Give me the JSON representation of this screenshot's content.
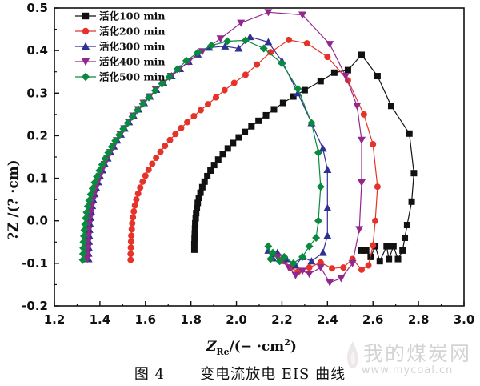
{
  "chart_data": {
    "type": "scatter",
    "xlabel": "Z_Re/(− ·cm²)",
    "xlabel_main": "Z",
    "xlabel_sub": "Re",
    "xlabel_tail": "/(− ·cm",
    "xlabel_sup": "2",
    "xlabel_close": ")",
    "ylabel": "?Z  /(? ·cm)",
    "xlim": [
      1.2,
      3.0
    ],
    "ylim": [
      -0.2,
      0.5
    ],
    "xticks": [
      "1.2",
      "1.4",
      "1.6",
      "1.8",
      "2.0",
      "2.2",
      "2.4",
      "2.6",
      "2.8",
      "3.0"
    ],
    "yticks": [
      "-0.2",
      "-0.1",
      "0.0",
      "0.1",
      "0.2",
      "0.3",
      "0.4",
      "0.5"
    ],
    "legend_position": "top-left",
    "series": [
      {
        "name": "活化100 min",
        "color": "#111111",
        "marker": "square",
        "points": [
          [
            1.815,
            -0.068
          ],
          [
            1.815,
            -0.055
          ],
          [
            1.816,
            -0.042
          ],
          [
            1.817,
            -0.03
          ],
          [
            1.818,
            -0.018
          ],
          [
            1.819,
            -0.006
          ],
          [
            1.821,
            0.006
          ],
          [
            1.823,
            0.018
          ],
          [
            1.826,
            0.03
          ],
          [
            1.83,
            0.042
          ],
          [
            1.835,
            0.054
          ],
          [
            1.842,
            0.066
          ],
          [
            1.85,
            0.079
          ],
          [
            1.86,
            0.092
          ],
          [
            1.872,
            0.105
          ],
          [
            1.886,
            0.118
          ],
          [
            1.902,
            0.131
          ],
          [
            1.92,
            0.144
          ],
          [
            1.94,
            0.157
          ],
          [
            1.962,
            0.17
          ],
          [
            1.985,
            0.183
          ],
          [
            2.01,
            0.196
          ],
          [
            2.037,
            0.209
          ],
          [
            2.066,
            0.222
          ],
          [
            2.097,
            0.235
          ],
          [
            2.13,
            0.248
          ],
          [
            2.165,
            0.262
          ],
          [
            2.205,
            0.277
          ],
          [
            2.25,
            0.292
          ],
          [
            2.3,
            0.307
          ],
          [
            2.37,
            0.328
          ],
          [
            2.43,
            0.348
          ],
          [
            2.49,
            0.354
          ],
          [
            2.55,
            0.39
          ],
          [
            2.62,
            0.34
          ],
          [
            2.68,
            0.27
          ],
          [
            2.76,
            0.205
          ],
          [
            2.78,
            0.112
          ],
          [
            2.77,
            0.045
          ],
          [
            2.75,
            -0.01
          ],
          [
            2.74,
            -0.04
          ],
          [
            2.73,
            -0.07
          ],
          [
            2.71,
            -0.09
          ],
          [
            2.69,
            -0.06
          ],
          [
            2.67,
            -0.09
          ],
          [
            2.66,
            -0.06
          ],
          [
            2.63,
            -0.095
          ],
          [
            2.61,
            -0.06
          ],
          [
            2.59,
            -0.085
          ],
          [
            2.57,
            -0.07
          ],
          [
            2.55,
            -0.07
          ]
        ]
      },
      {
        "name": "活化200 min",
        "color": "#e5332a",
        "marker": "circle",
        "points": [
          [
            1.535,
            -0.092
          ],
          [
            1.535,
            -0.078
          ],
          [
            1.536,
            -0.063
          ],
          [
            1.537,
            -0.049
          ],
          [
            1.538,
            -0.035
          ],
          [
            1.54,
            -0.02
          ],
          [
            1.542,
            -0.006
          ],
          [
            1.545,
            0.008
          ],
          [
            1.549,
            0.022
          ],
          [
            1.554,
            0.036
          ],
          [
            1.56,
            0.05
          ],
          [
            1.568,
            0.064
          ],
          [
            1.577,
            0.078
          ],
          [
            1.588,
            0.092
          ],
          [
            1.6,
            0.106
          ],
          [
            1.614,
            0.12
          ],
          [
            1.63,
            0.134
          ],
          [
            1.647,
            0.148
          ],
          [
            1.666,
            0.162
          ],
          [
            1.686,
            0.176
          ],
          [
            1.708,
            0.19
          ],
          [
            1.732,
            0.204
          ],
          [
            1.757,
            0.218
          ],
          [
            1.784,
            0.232
          ],
          [
            1.813,
            0.246
          ],
          [
            1.843,
            0.26
          ],
          [
            1.875,
            0.274
          ],
          [
            1.91,
            0.29
          ],
          [
            1.948,
            0.307
          ],
          [
            1.99,
            0.324
          ],
          [
            2.04,
            0.343
          ],
          [
            2.09,
            0.367
          ],
          [
            2.15,
            0.396
          ],
          [
            2.23,
            0.425
          ],
          [
            2.31,
            0.417
          ],
          [
            2.4,
            0.385
          ],
          [
            2.49,
            0.33
          ],
          [
            2.56,
            0.25
          ],
          [
            2.6,
            0.18
          ],
          [
            2.62,
            0.08
          ],
          [
            2.61,
            0.0
          ],
          [
            2.6,
            -0.058
          ],
          [
            2.58,
            -0.105
          ],
          [
            2.55,
            -0.115
          ],
          [
            2.51,
            -0.09
          ],
          [
            2.47,
            -0.11
          ],
          [
            2.42,
            -0.112
          ],
          [
            2.37,
            -0.098
          ],
          [
            2.32,
            -0.11
          ],
          [
            2.27,
            -0.12
          ],
          [
            2.24,
            -0.11
          ],
          [
            2.21,
            -0.095
          ],
          [
            2.18,
            -0.08
          ]
        ]
      },
      {
        "name": "活化300 min",
        "color": "#2e3192",
        "marker": "triangle",
        "points": [
          [
            1.35,
            -0.09
          ],
          [
            1.35,
            -0.077
          ],
          [
            1.351,
            -0.063
          ],
          [
            1.352,
            -0.049
          ],
          [
            1.353,
            -0.035
          ],
          [
            1.354,
            -0.021
          ],
          [
            1.356,
            -0.007
          ],
          [
            1.359,
            0.007
          ],
          [
            1.362,
            0.021
          ],
          [
            1.366,
            0.035
          ],
          [
            1.371,
            0.049
          ],
          [
            1.377,
            0.063
          ],
          [
            1.384,
            0.077
          ],
          [
            1.392,
            0.091
          ],
          [
            1.401,
            0.105
          ],
          [
            1.411,
            0.119
          ],
          [
            1.422,
            0.133
          ],
          [
            1.434,
            0.147
          ],
          [
            1.447,
            0.161
          ],
          [
            1.461,
            0.175
          ],
          [
            1.476,
            0.189
          ],
          [
            1.492,
            0.203
          ],
          [
            1.509,
            0.217
          ],
          [
            1.528,
            0.232
          ],
          [
            1.548,
            0.247
          ],
          [
            1.57,
            0.262
          ],
          [
            1.594,
            0.277
          ],
          [
            1.62,
            0.292
          ],
          [
            1.648,
            0.308
          ],
          [
            1.68,
            0.324
          ],
          [
            1.715,
            0.34
          ],
          [
            1.752,
            0.357
          ],
          [
            1.79,
            0.374
          ],
          [
            1.83,
            0.391
          ],
          [
            1.88,
            0.407
          ],
          [
            1.95,
            0.41
          ],
          [
            2.01,
            0.405
          ],
          [
            2.06,
            0.432
          ],
          [
            2.14,
            0.42
          ],
          [
            2.2,
            0.375
          ],
          [
            2.27,
            0.3
          ],
          [
            2.33,
            0.23
          ],
          [
            2.38,
            0.17
          ],
          [
            2.4,
            0.12
          ],
          [
            2.4,
            0.03
          ],
          [
            2.4,
            -0.035
          ],
          [
            2.38,
            -0.075
          ],
          [
            2.33,
            -0.095
          ],
          [
            2.29,
            -0.085
          ],
          [
            2.26,
            -0.105
          ],
          [
            2.22,
            -0.09
          ],
          [
            2.18,
            -0.075
          ],
          [
            2.16,
            -0.088
          ],
          [
            2.14,
            -0.07
          ]
        ]
      },
      {
        "name": "活化400 min",
        "color": "#92278f",
        "marker": "triangle-down",
        "points": [
          [
            1.345,
            -0.09
          ],
          [
            1.346,
            -0.077
          ],
          [
            1.347,
            -0.063
          ],
          [
            1.348,
            -0.049
          ],
          [
            1.349,
            -0.035
          ],
          [
            1.351,
            -0.021
          ],
          [
            1.353,
            -0.007
          ],
          [
            1.356,
            0.007
          ],
          [
            1.36,
            0.021
          ],
          [
            1.364,
            0.035
          ],
          [
            1.369,
            0.049
          ],
          [
            1.375,
            0.063
          ],
          [
            1.382,
            0.077
          ],
          [
            1.39,
            0.091
          ],
          [
            1.399,
            0.105
          ],
          [
            1.409,
            0.119
          ],
          [
            1.42,
            0.133
          ],
          [
            1.432,
            0.147
          ],
          [
            1.445,
            0.161
          ],
          [
            1.459,
            0.175
          ],
          [
            1.474,
            0.189
          ],
          [
            1.49,
            0.203
          ],
          [
            1.507,
            0.217
          ],
          [
            1.526,
            0.232
          ],
          [
            1.546,
            0.247
          ],
          [
            1.568,
            0.262
          ],
          [
            1.592,
            0.277
          ],
          [
            1.618,
            0.292
          ],
          [
            1.646,
            0.308
          ],
          [
            1.678,
            0.324
          ],
          [
            1.712,
            0.34
          ],
          [
            1.75,
            0.357
          ],
          [
            1.79,
            0.374
          ],
          [
            1.85,
            0.398
          ],
          [
            1.93,
            0.428
          ],
          [
            2.02,
            0.465
          ],
          [
            2.14,
            0.49
          ],
          [
            2.29,
            0.484
          ],
          [
            2.41,
            0.415
          ],
          [
            2.48,
            0.34
          ],
          [
            2.53,
            0.27
          ],
          [
            2.55,
            0.19
          ],
          [
            2.55,
            0.09
          ],
          [
            2.54,
            -0.02
          ],
          [
            2.51,
            -0.1
          ],
          [
            2.46,
            -0.135
          ],
          [
            2.41,
            -0.145
          ],
          [
            2.37,
            -0.11
          ],
          [
            2.32,
            -0.125
          ],
          [
            2.29,
            -0.118
          ],
          [
            2.26,
            -0.128
          ],
          [
            2.23,
            -0.11
          ],
          [
            2.2,
            -0.095
          ],
          [
            2.18,
            -0.085
          ]
        ]
      },
      {
        "name": "活化500 min",
        "color": "#0a8a3e",
        "marker": "diamond",
        "points": [
          [
            1.325,
            -0.092
          ],
          [
            1.326,
            -0.078
          ],
          [
            1.327,
            -0.064
          ],
          [
            1.328,
            -0.05
          ],
          [
            1.33,
            -0.036
          ],
          [
            1.332,
            -0.022
          ],
          [
            1.335,
            -0.008
          ],
          [
            1.338,
            0.006
          ],
          [
            1.342,
            0.02
          ],
          [
            1.347,
            0.034
          ],
          [
            1.353,
            0.048
          ],
          [
            1.36,
            0.062
          ],
          [
            1.368,
            0.076
          ],
          [
            1.377,
            0.09
          ],
          [
            1.387,
            0.104
          ],
          [
            1.398,
            0.118
          ],
          [
            1.41,
            0.132
          ],
          [
            1.423,
            0.146
          ],
          [
            1.437,
            0.16
          ],
          [
            1.452,
            0.174
          ],
          [
            1.468,
            0.188
          ],
          [
            1.485,
            0.202
          ],
          [
            1.503,
            0.216
          ],
          [
            1.522,
            0.23
          ],
          [
            1.543,
            0.245
          ],
          [
            1.565,
            0.26
          ],
          [
            1.589,
            0.275
          ],
          [
            1.615,
            0.29
          ],
          [
            1.643,
            0.306
          ],
          [
            1.673,
            0.322
          ],
          [
            1.705,
            0.338
          ],
          [
            1.74,
            0.356
          ],
          [
            1.78,
            0.376
          ],
          [
            1.83,
            0.395
          ],
          [
            1.89,
            0.412
          ],
          [
            1.96,
            0.422
          ],
          [
            2.04,
            0.424
          ],
          [
            2.12,
            0.405
          ],
          [
            2.2,
            0.37
          ],
          [
            2.27,
            0.31
          ],
          [
            2.33,
            0.23
          ],
          [
            2.36,
            0.16
          ],
          [
            2.37,
            0.08
          ],
          [
            2.36,
            0.0
          ],
          [
            2.35,
            -0.04
          ],
          [
            2.32,
            -0.06
          ],
          [
            2.29,
            -0.085
          ],
          [
            2.25,
            -0.1
          ],
          [
            2.21,
            -0.085
          ],
          [
            2.19,
            -0.095
          ],
          [
            2.16,
            -0.075
          ],
          [
            2.15,
            -0.09
          ],
          [
            2.14,
            -0.06
          ]
        ]
      }
    ]
  },
  "caption": {
    "figure_number": "图 4",
    "text": "变电流放电 EIS 曲线"
  },
  "watermark": {
    "text": "我的煤炭网",
    "url": "www.mycoal.cn"
  }
}
